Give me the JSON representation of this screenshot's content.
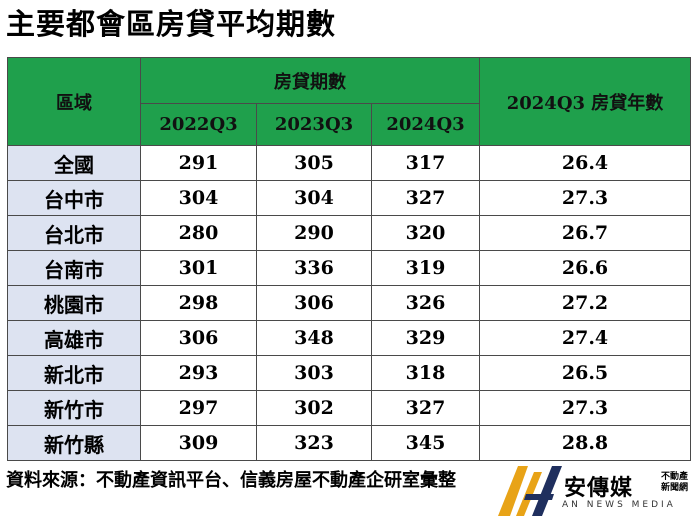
{
  "title": "主要都會區房貸平均期數",
  "table": {
    "area_header": "區域",
    "group_header": "房貸期數",
    "year_header": "2024Q3 房貸年數",
    "period_headers": [
      "2022Q3",
      "2023Q3",
      "2024Q3"
    ],
    "rows": [
      {
        "name": "全國",
        "v1": "291",
        "v2": "305",
        "v3": "317",
        "years": "26.4"
      },
      {
        "name": "台中市",
        "v1": "304",
        "v2": "304",
        "v3": "327",
        "years": "27.3"
      },
      {
        "name": "台北市",
        "v1": "280",
        "v2": "290",
        "v3": "320",
        "years": "26.7"
      },
      {
        "name": "台南市",
        "v1": "301",
        "v2": "336",
        "v3": "319",
        "years": "26.6"
      },
      {
        "name": "桃園市",
        "v1": "298",
        "v2": "306",
        "v3": "326",
        "years": "27.2"
      },
      {
        "name": "高雄市",
        "v1": "306",
        "v2": "348",
        "v3": "329",
        "years": "27.4"
      },
      {
        "name": "新北市",
        "v1": "293",
        "v2": "303",
        "v3": "318",
        "years": "26.5"
      },
      {
        "name": "新竹市",
        "v1": "297",
        "v2": "302",
        "v3": "327",
        "years": "27.3"
      },
      {
        "name": "新竹縣",
        "v1": "309",
        "v2": "323",
        "v3": "345",
        "years": "28.8"
      }
    ]
  },
  "footer": {
    "source": "資料來源：不動產資訊平台、信義房屋不動產企研室彙整"
  },
  "logo": {
    "name": "安傳媒",
    "tagline": "不動產新聞網",
    "english": "AN NEWS MEDIA",
    "colors": {
      "gold": "#e8a317",
      "navy": "#1f2f5e"
    }
  },
  "colors": {
    "header_green": "#1fa04c",
    "name_cell_blue": "#dde3f1"
  }
}
